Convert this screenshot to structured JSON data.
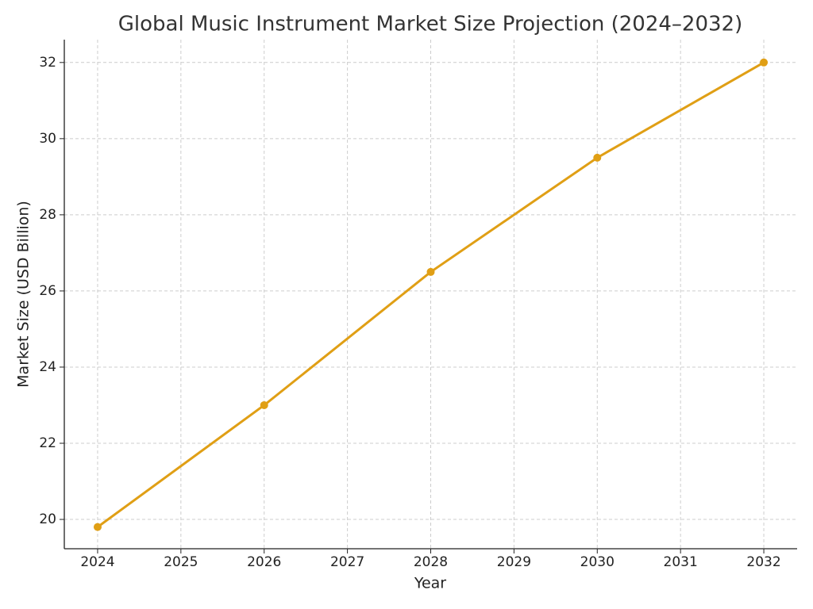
{
  "chart_data": {
    "type": "line",
    "title": "Global Music Instrument Market Size Projection (2024–2032)",
    "x_label": "Year",
    "y_label": "Market Size (USD Billion)",
    "x": [
      2024,
      2026,
      2028,
      2030,
      2032
    ],
    "series": [
      {
        "name": "Market Size",
        "color": "#e09f15",
        "values": [
          19.8,
          23.0,
          26.5,
          29.5,
          32.0
        ]
      }
    ],
    "xlim": [
      2023.6,
      2032.4
    ],
    "xticks": [
      2024,
      2025,
      2026,
      2027,
      2028,
      2029,
      2030,
      2031,
      2032
    ],
    "ylim": [
      19.23,
      32.6
    ],
    "yticks": [
      20,
      22,
      24,
      26,
      28,
      30,
      32
    ],
    "grid": true
  }
}
